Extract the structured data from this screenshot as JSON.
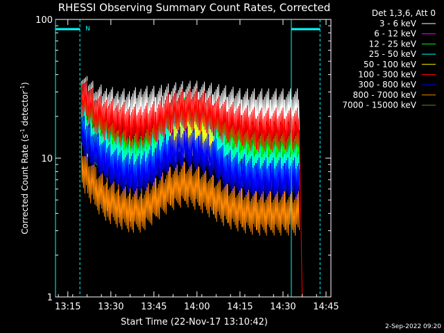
{
  "chart_data": {
    "type": "line",
    "title": "RHESSI Observing Summary Count Rates, Corrected",
    "xlabel": "Start Time (22-Nov-17 13:10:42)",
    "ylabel_main": "Corrected Count Rate (s",
    "ylabel_sup1": "-1",
    "ylabel_mid": " detector",
    "ylabel_sup2": "-1",
    "ylabel_end": ")",
    "yscale": "log",
    "ylim": [
      1,
      100
    ],
    "xlim_min": [
      0,
      96
    ],
    "x_start": "13:10:42",
    "x_ticks": [
      {
        "min": 4.3,
        "label": "13:15"
      },
      {
        "min": 19.3,
        "label": "13:30"
      },
      {
        "min": 34.3,
        "label": "13:45"
      },
      {
        "min": 49.3,
        "label": "14:00"
      },
      {
        "min": 64.3,
        "label": "14:15"
      },
      {
        "min": 79.3,
        "label": "14:30"
      },
      {
        "min": 94.3,
        "label": "14:45"
      }
    ],
    "y_ticks": [
      {
        "value": 1,
        "label": "1"
      },
      {
        "value": 10,
        "label": "10"
      },
      {
        "value": 100,
        "label": "100"
      }
    ],
    "legend_header": "Det 1,3,6, Att 0",
    "legend_position": "right",
    "series": [
      {
        "name": "3 - 6 keV",
        "color": "#ffffff",
        "x": [
          9,
          11,
          14,
          18,
          22,
          26,
          30,
          35,
          40,
          45,
          50,
          55,
          60,
          65,
          70,
          75,
          80,
          85
        ],
        "y": [
          30,
          27,
          24,
          23,
          22,
          22,
          23,
          23,
          24,
          25,
          25,
          24,
          23,
          22,
          22,
          22,
          22,
          22
        ]
      },
      {
        "name": "6 - 12 keV",
        "color": "#ff00ff",
        "x": [],
        "y": []
      },
      {
        "name": "12 - 25 keV",
        "color": "#00ff00",
        "x": [
          9,
          11,
          14,
          18,
          22,
          26,
          30,
          35,
          40,
          45,
          50,
          55,
          60,
          65,
          70,
          75,
          80,
          85
        ],
        "y": [
          24,
          20,
          17,
          14,
          12,
          11,
          11,
          13,
          17,
          19,
          18,
          16,
          13,
          12,
          11,
          11,
          11,
          11
        ]
      },
      {
        "name": "25 - 50 keV",
        "color": "#00ffff",
        "x": [
          9,
          11,
          14,
          18,
          22,
          26,
          30,
          35,
          40,
          45,
          50,
          55,
          60,
          65,
          70,
          75,
          80,
          85
        ],
        "y": [
          19,
          15,
          13,
          11,
          10,
          9,
          9,
          11,
          14,
          16,
          15,
          13,
          10,
          9,
          8.5,
          8.5,
          8.5,
          8.5
        ]
      },
      {
        "name": "50 - 100 keV",
        "color": "#ffff00",
        "x": [
          40,
          43,
          46,
          49,
          52,
          55
        ],
        "y": [
          13,
          14,
          15,
          15,
          14,
          12
        ]
      },
      {
        "name": "100 - 300 keV",
        "color": "#ff0000",
        "x": [
          9,
          11,
          14,
          18,
          22,
          26,
          30,
          35,
          40,
          45,
          50,
          55,
          60,
          65,
          70,
          75,
          80,
          85,
          86
        ],
        "y": [
          28,
          25,
          21,
          19,
          18,
          17,
          17,
          18,
          21,
          22,
          22,
          20,
          18,
          17,
          16,
          16,
          16,
          16,
          1
        ]
      },
      {
        "name": "300 - 800 keV",
        "color": "#0000ff",
        "x": [
          9,
          11,
          14,
          18,
          22,
          26,
          30,
          35,
          40,
          45,
          50,
          55,
          60,
          65,
          70,
          75,
          80,
          85
        ],
        "y": [
          15,
          13,
          11,
          9,
          8,
          7.5,
          7.5,
          9,
          11,
          12,
          11,
          10,
          8,
          7.5,
          7,
          7,
          7,
          7
        ]
      },
      {
        "name": "800 - 7000 keV",
        "color": "#ff8800",
        "x": [
          9,
          11,
          14,
          18,
          22,
          26,
          30,
          35,
          40,
          45,
          50,
          55,
          60,
          65,
          70,
          75,
          80,
          85
        ],
        "y": [
          9,
          7.5,
          6,
          5,
          4.5,
          4.2,
          4.2,
          5,
          6,
          6.5,
          6,
          5.2,
          4.5,
          4.2,
          4,
          4,
          4,
          4
        ]
      },
      {
        "name": "7000 - 15000 keV",
        "color": "#808000",
        "x": [],
        "y": []
      }
    ],
    "annotations": {
      "flag_label": "N",
      "timestamp": "2-Sep-2022 09:20"
    }
  }
}
